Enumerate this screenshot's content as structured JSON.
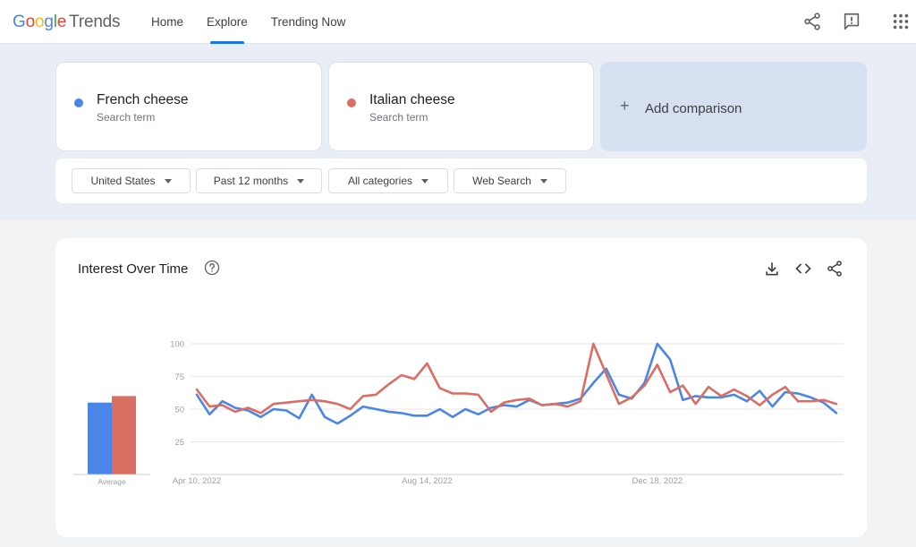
{
  "header": {
    "logo": {
      "g1": "G",
      "o1": "o",
      "o2": "o",
      "g2": "g",
      "l": "l",
      "e": "e",
      "trends": "Trends"
    },
    "nav": [
      "Home",
      "Explore",
      "Trending Now"
    ],
    "active_tab": "Explore",
    "icons": [
      "share-icon",
      "feedback-icon",
      "apps-grid-icon"
    ]
  },
  "terms": [
    {
      "name": "French cheese",
      "sub": "Search term",
      "color": "#4a86e8"
    },
    {
      "name": "Italian cheese",
      "sub": "Search term",
      "color": "#db6e63"
    }
  ],
  "add_comparison": {
    "plus": "+",
    "label": "Add comparison"
  },
  "filters": {
    "region": "United States",
    "time": "Past 12 months",
    "category": "All categories",
    "property": "Web Search"
  },
  "chart_card": {
    "title": "Interest Over Time",
    "icons": [
      "help-icon",
      "download-icon",
      "embed-icon",
      "share-icon"
    ]
  },
  "chart_data": {
    "type": "line",
    "ylim": [
      0,
      100
    ],
    "yticks": [
      "100",
      "75",
      "50",
      "25"
    ],
    "ytick_values": [
      100,
      75,
      50,
      25
    ],
    "xtick_labels": [
      "Apr 10, 2022",
      "Aug 14, 2022",
      "Dec 18, 2022"
    ],
    "xtick_indices": [
      0,
      18,
      36
    ],
    "average_label": "Average",
    "averages": [
      55,
      60
    ],
    "series": [
      {
        "name": "French cheese",
        "color": "#4a86e8",
        "values": [
          61,
          46,
          56,
          51,
          49,
          44,
          50,
          49,
          43,
          61,
          44,
          39,
          45,
          52,
          50,
          48,
          47,
          45,
          45,
          50,
          44,
          50,
          46,
          51,
          53,
          52,
          57,
          53,
          54,
          55,
          58,
          70,
          81,
          61,
          58,
          70,
          100,
          88,
          57,
          60,
          59,
          59,
          61,
          56,
          64,
          52,
          63,
          62,
          59,
          55,
          47
        ]
      },
      {
        "name": "Italian cheese",
        "color": "#db6e63",
        "values": [
          65,
          52,
          53,
          48,
          51,
          47,
          54,
          55,
          56,
          57,
          56,
          54,
          50,
          60,
          61,
          69,
          76,
          73,
          85,
          66,
          62,
          62,
          61,
          48,
          55,
          57,
          58,
          53,
          54,
          52,
          56,
          100,
          77,
          54,
          59,
          68,
          84,
          63,
          68,
          54,
          67,
          60,
          65,
          60,
          53,
          61,
          67,
          56,
          56,
          57,
          54
        ]
      }
    ]
  }
}
